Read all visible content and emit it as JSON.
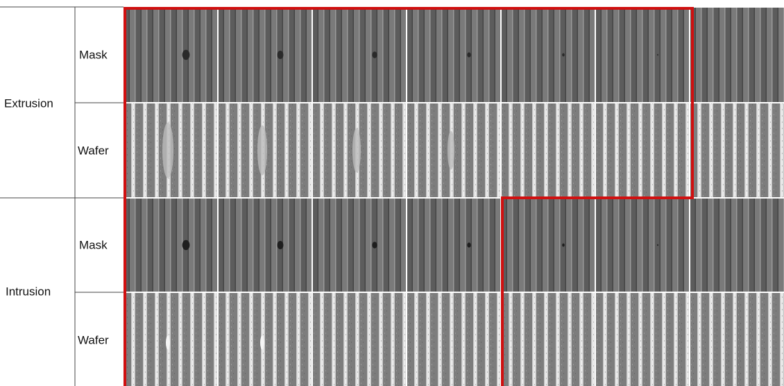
{
  "groups": [
    {
      "label": "Extrusion",
      "rows": [
        {
          "label": "Mask"
        },
        {
          "label": "Wafer"
        }
      ]
    },
    {
      "label": "Intrusion",
      "rows": [
        {
          "label": "Mask"
        },
        {
          "label": "Wafer"
        }
      ]
    }
  ]
}
